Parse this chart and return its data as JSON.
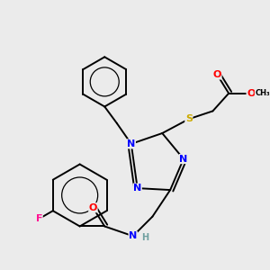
{
  "background_color": "#ebebeb",
  "atom_colors": {
    "N": "#0000ff",
    "O": "#ff0000",
    "S": "#ccaa00",
    "F": "#ff1493",
    "H": "#6fa0a0",
    "C": "#000000"
  },
  "figsize": [
    3.0,
    3.0
  ],
  "dpi": 100
}
